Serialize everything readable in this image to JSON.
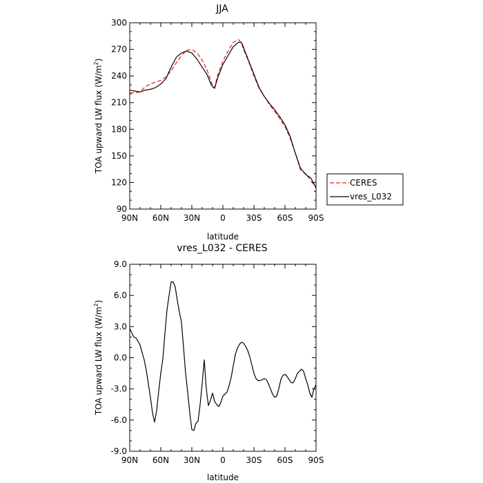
{
  "chart_data": [
    {
      "type": "line",
      "title": "JJA",
      "xlabel": "latitude",
      "ylabel": "TOA upward LW flux (W/m",
      "ylabel_sup": "2",
      "ylabel_tail": ")",
      "xlim": [
        90,
        -90
      ],
      "ylim": [
        90,
        300
      ],
      "xticks": [
        90,
        60,
        30,
        0,
        -30,
        -60,
        -90
      ],
      "xticklabels": [
        "90N",
        "60N",
        "30N",
        "0",
        "30S",
        "60S",
        "90S"
      ],
      "yticks": [
        90,
        120,
        150,
        180,
        210,
        240,
        270,
        300
      ],
      "yticklabels": [
        "90",
        "120",
        "150",
        "180",
        "210",
        "240",
        "270",
        "300"
      ],
      "legend_position": "right",
      "series": [
        {
          "name": "CERES",
          "color": "#e41a1c",
          "dash": "dashed",
          "x": [
            90,
            85,
            80,
            75,
            70,
            65,
            60,
            55,
            50,
            45,
            40,
            35,
            30,
            25,
            20,
            15,
            12,
            10,
            8,
            5,
            0,
            -5,
            -10,
            -15,
            -18,
            -20,
            -25,
            -30,
            -35,
            -40,
            -45,
            -50,
            -55,
            -60,
            -65,
            -70,
            -75,
            -80,
            -85,
            -90
          ],
          "y": [
            221,
            221,
            222,
            228,
            231,
            233,
            235,
            239,
            246,
            255,
            263,
            269,
            270,
            266,
            258,
            246,
            236,
            229,
            227,
            241,
            257,
            268,
            278,
            281,
            277,
            270,
            256,
            240,
            226,
            217,
            208,
            200,
            192,
            183,
            170,
            153,
            134,
            130,
            122,
            114
          ]
        },
        {
          "name": "vres_L032",
          "color": "#000000",
          "dash": "solid",
          "x": [
            90,
            85,
            80,
            75,
            70,
            65,
            60,
            55,
            50,
            45,
            40,
            35,
            30,
            25,
            20,
            15,
            12,
            10,
            8,
            5,
            0,
            -5,
            -10,
            -15,
            -18,
            -20,
            -25,
            -30,
            -35,
            -40,
            -45,
            -50,
            -55,
            -60,
            -65,
            -70,
            -75,
            -80,
            -85,
            -90
          ],
          "y": [
            224,
            223,
            222,
            224,
            225,
            227,
            231,
            237,
            250,
            261,
            266,
            268,
            266,
            259,
            250,
            241,
            232,
            228,
            226,
            238,
            253,
            263,
            273,
            278,
            278,
            272,
            257,
            242,
            227,
            217,
            209,
            202,
            194,
            185,
            172,
            153,
            136,
            129,
            125,
            114
          ]
        }
      ]
    },
    {
      "type": "line",
      "title": "vres_L032 - CERES",
      "xlabel": "latitude",
      "ylabel": "TOA upward LW flux (W/m",
      "ylabel_sup": "2",
      "ylabel_tail": ")",
      "xlim": [
        90,
        -90
      ],
      "ylim": [
        -9,
        9
      ],
      "xticks": [
        90,
        60,
        30,
        0,
        -30,
        -60,
        -90
      ],
      "xticklabels": [
        "90N",
        "60N",
        "30N",
        "0",
        "30S",
        "60S",
        "90S"
      ],
      "yticks": [
        -9,
        -6,
        -3,
        0,
        3,
        6,
        9
      ],
      "yticklabels": [
        "-9.0",
        "-6.0",
        "-3.0",
        "0.0",
        "3.0",
        "6.0",
        "9.0"
      ],
      "series": [
        {
          "name": "",
          "color": "#000000",
          "dash": "solid",
          "x": [
            90,
            88,
            86,
            84,
            82,
            80,
            78,
            76,
            74,
            72,
            70,
            68,
            66,
            64,
            62,
            60,
            58,
            56,
            54,
            52,
            50,
            48,
            46,
            44,
            42,
            40,
            38,
            36,
            34,
            32,
            30,
            28,
            26,
            24,
            22,
            20,
            18,
            16,
            14,
            12,
            10,
            8,
            6,
            4,
            2,
            0,
            -2,
            -4,
            -6,
            -8,
            -10,
            -12,
            -14,
            -16,
            -18,
            -20,
            -22,
            -24,
            -26,
            -28,
            -30,
            -32,
            -34,
            -36,
            -38,
            -40,
            -42,
            -44,
            -46,
            -48,
            -50,
            -52,
            -54,
            -56,
            -58,
            -60,
            -62,
            -64,
            -66,
            -68,
            -70,
            -72,
            -74,
            -76,
            -78,
            -80,
            -82,
            -84,
            -86,
            -88,
            -90
          ],
          "y": [
            2.8,
            2.4,
            2.0,
            1.9,
            1.6,
            1.2,
            0.5,
            -0.2,
            -1.2,
            -2.5,
            -3.8,
            -5.3,
            -6.2,
            -5.1,
            -3.2,
            -1.5,
            -0.1,
            2.3,
            4.6,
            6.0,
            7.3,
            7.3,
            6.8,
            5.5,
            4.4,
            3.4,
            1.0,
            -1.5,
            -3.3,
            -5.3,
            -6.9,
            -7.0,
            -6.3,
            -6.1,
            -4.5,
            -2.5,
            -0.2,
            -3.0,
            -4.6,
            -4.1,
            -3.4,
            -4.2,
            -4.5,
            -4.7,
            -4.3,
            -3.7,
            -3.5,
            -3.3,
            -2.7,
            -1.9,
            -0.8,
            0.3,
            0.9,
            1.3,
            1.5,
            1.4,
            1.1,
            0.7,
            0.1,
            -0.7,
            -1.5,
            -2.0,
            -2.2,
            -2.2,
            -2.1,
            -2.0,
            -2.1,
            -2.5,
            -3.0,
            -3.5,
            -3.8,
            -3.7,
            -3.0,
            -2.1,
            -1.7,
            -1.6,
            -1.8,
            -2.1,
            -2.4,
            -2.4,
            -2.0,
            -1.5,
            -1.3,
            -1.1,
            -1.3,
            -2.0,
            -2.6,
            -3.4,
            -3.8,
            -3.0,
            -2.6
          ]
        }
      ]
    }
  ]
}
